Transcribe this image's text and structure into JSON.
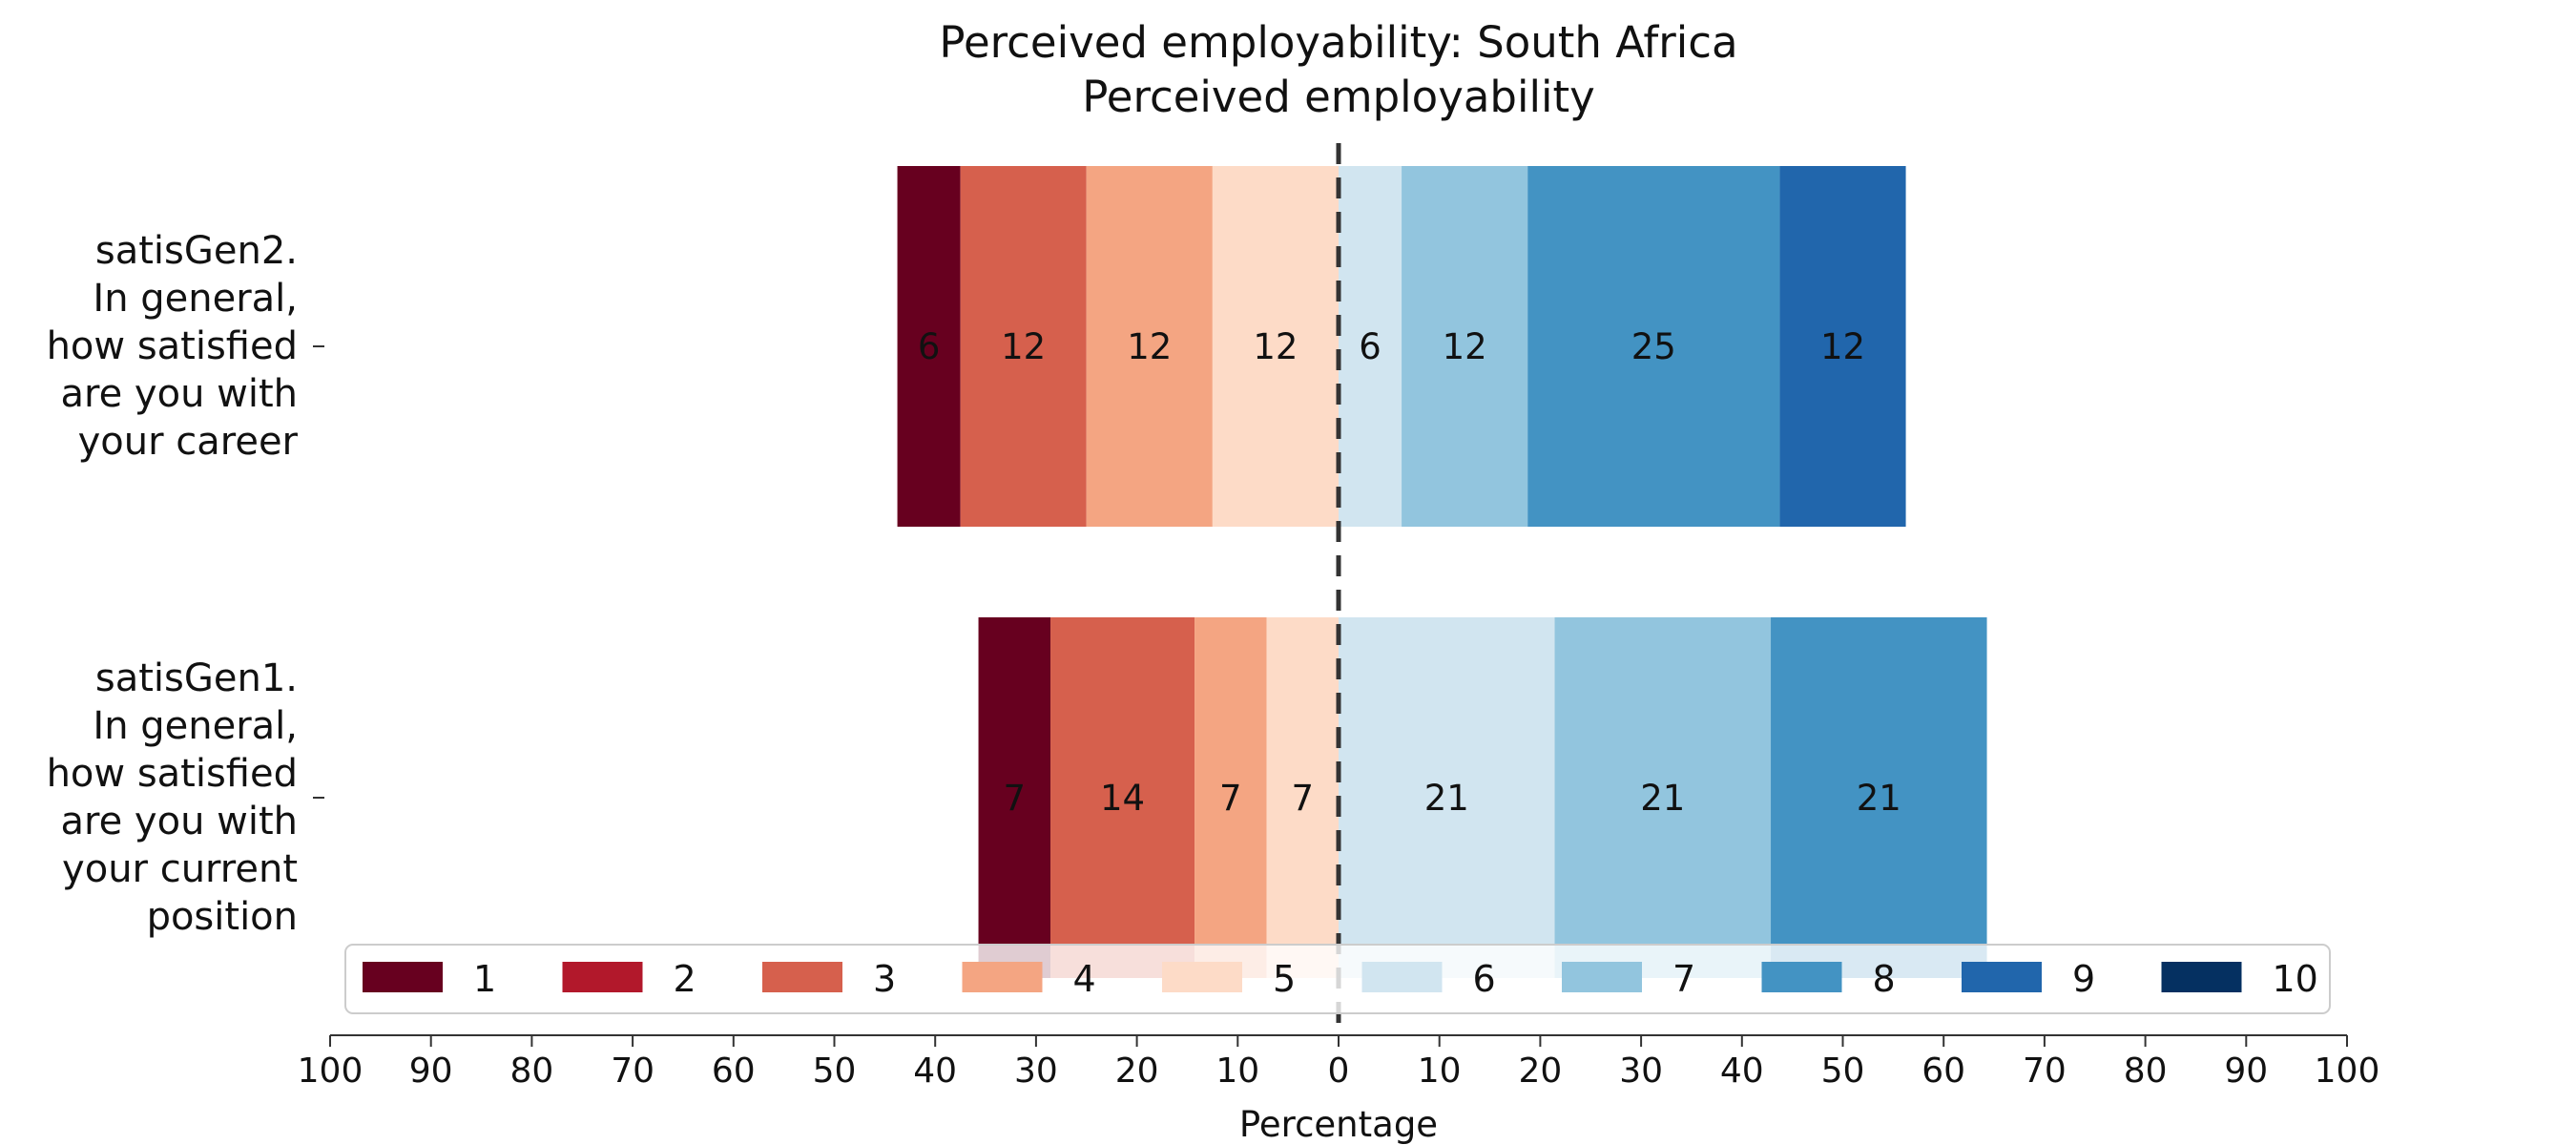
{
  "chart_data": {
    "type": "bar",
    "orientation": "horizontal-diverging",
    "title": "Perceived employability: South Africa",
    "subtitle": "Perceived employability",
    "xlabel": "Percentage",
    "xlim": [
      -100,
      100
    ],
    "xticks": [
      -100,
      -90,
      -80,
      -70,
      -60,
      -50,
      -40,
      -30,
      -20,
      -10,
      0,
      10,
      20,
      30,
      40,
      50,
      60,
      70,
      80,
      90,
      100
    ],
    "xtick_labels": [
      "100",
      "90",
      "80",
      "70",
      "60",
      "50",
      "40",
      "30",
      "20",
      "10",
      "0",
      "10",
      "20",
      "30",
      "40",
      "50",
      "60",
      "70",
      "80",
      "90",
      "100"
    ],
    "legend_position": "bottom",
    "legend": [
      {
        "label": "1",
        "color": "#67001f"
      },
      {
        "label": "2",
        "color": "#b2182b"
      },
      {
        "label": "3",
        "color": "#d6604d"
      },
      {
        "label": "4",
        "color": "#f4a582"
      },
      {
        "label": "5",
        "color": "#fddbc7"
      },
      {
        "label": "6",
        "color": "#d1e5f0"
      },
      {
        "label": "7",
        "color": "#92c5de"
      },
      {
        "label": "8",
        "color": "#4393c3"
      },
      {
        "label": "9",
        "color": "#2166ac"
      },
      {
        "label": "10",
        "color": "#053061"
      }
    ],
    "categories": [
      {
        "label_lines": [
          "satisGen2.",
          "In general,",
          "how satisfied",
          "are you with",
          "your career"
        ],
        "segments": [
          {
            "level": "1",
            "value": 6.25,
            "label": "6"
          },
          {
            "level": "3",
            "value": 12.5,
            "label": "12"
          },
          {
            "level": "4",
            "value": 12.5,
            "label": "12"
          },
          {
            "level": "5",
            "value": 12.5,
            "label": "12"
          },
          {
            "level": "6",
            "value": 6.25,
            "label": "6"
          },
          {
            "level": "7",
            "value": 12.5,
            "label": "12"
          },
          {
            "level": "8",
            "value": 25.0,
            "label": "25"
          },
          {
            "level": "9",
            "value": 12.5,
            "label": "12"
          }
        ]
      },
      {
        "label_lines": [
          "satisGen1.",
          "In general,",
          "how satisfied",
          "are you with",
          "your current",
          "position"
        ],
        "segments": [
          {
            "level": "1",
            "value": 7.14,
            "label": "7"
          },
          {
            "level": "3",
            "value": 14.29,
            "label": "14"
          },
          {
            "level": "4",
            "value": 7.14,
            "label": "7"
          },
          {
            "level": "5",
            "value": 7.14,
            "label": "7"
          },
          {
            "level": "6",
            "value": 21.43,
            "label": "21"
          },
          {
            "level": "7",
            "value": 21.43,
            "label": "21"
          },
          {
            "level": "8",
            "value": 21.43,
            "label": "21"
          }
        ]
      }
    ]
  }
}
